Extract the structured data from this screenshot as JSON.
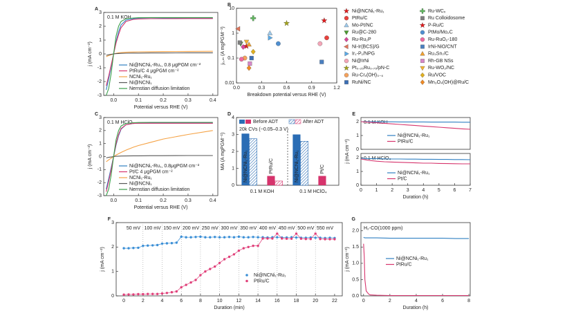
{
  "chart_data": [
    {
      "type": "line",
      "panel": "A",
      "annotations": [
        "0.1 M KOH"
      ],
      "xlabel": "Potential versus RHE (V)",
      "ylabel": "j (mA cm⁻²)",
      "xlim": [
        -0.04,
        0.42
      ],
      "xticks": [
        {
          "value": 0,
          "label": "0.0"
        },
        {
          "value": 0.1,
          "label": "0.1"
        },
        {
          "value": 0.2,
          "label": "0.2"
        },
        {
          "value": 0.3,
          "label": "0.3"
        },
        {
          "value": 0.4,
          "label": "0.4"
        }
      ],
      "ylim": [
        -3,
        3
      ],
      "yticks": [
        -3,
        -2,
        -1,
        0,
        1,
        2,
        3
      ],
      "x": [
        -0.03,
        -0.02,
        -0.01,
        0,
        0.01,
        0.02,
        0.03,
        0.05,
        0.08,
        0.1,
        0.15,
        0.2,
        0.3,
        0.4
      ],
      "series": [
        {
          "name": "Ni@NCNi₁-Ru₁, 0.8 μgPGM cm⁻²",
          "color": "#2f7fc2",
          "values": [
            -2.6,
            -1.8,
            -0.9,
            0,
            0.9,
            1.6,
            2.1,
            2.45,
            2.55,
            2.56,
            2.56,
            2.57,
            2.57,
            2.57
          ]
        },
        {
          "name": "PtRu/C 4 μgPGM cm⁻²",
          "color": "#d6336c",
          "values": [
            -2.3,
            -1.6,
            -0.8,
            0,
            0.8,
            1.4,
            1.9,
            2.35,
            2.5,
            2.53,
            2.55,
            2.55,
            2.56,
            2.56
          ]
        },
        {
          "name": "NCNi₁-Ru₁",
          "color": "#f5a142",
          "values": [
            -0.2,
            -0.12,
            -0.06,
            0,
            0.04,
            0.08,
            0.1,
            0.12,
            0.14,
            0.15,
            0.16,
            0.17,
            0.18,
            0.19
          ]
        },
        {
          "name": "Ni@NCNi₁",
          "color": "#555555",
          "values": [
            -0.1,
            -0.06,
            -0.03,
            0,
            0.02,
            0.03,
            0.04,
            0.05,
            0.06,
            0.06,
            0.07,
            0.07,
            0.08,
            0.08
          ]
        },
        {
          "name": "Nernstian diffusion limitation",
          "color": "#3a9e4a",
          "values": [
            -3,
            -2.5,
            -1.4,
            0,
            1.3,
            2.0,
            2.35,
            2.55,
            2.6,
            2.62,
            2.63,
            2.63,
            2.63,
            2.63
          ]
        }
      ]
    },
    {
      "type": "scatter",
      "panel": "B",
      "xlabel": "Breakdown potential versus RHE (V)",
      "ylabel": "j₀,ₘ (A mgPGM⁻¹)",
      "ylog": true,
      "xlim": [
        0,
        1.2
      ],
      "xticks": [
        {
          "value": 0,
          "label": "0.0"
        },
        0.3,
        0.6,
        0.9,
        1.2
      ],
      "ylim": [
        0.01,
        10
      ],
      "yticks": [
        0.01,
        0.1,
        1,
        10
      ],
      "series": [
        {
          "name": "Ni@NCNi₁-Ru₁",
          "color": "#e31a1c",
          "marker": "star",
          "x": [
            1.05
          ],
          "values": [
            3.2
          ]
        },
        {
          "name": "PtRu/C",
          "color": "#e8413c",
          "marker": "circle",
          "x": [
            1.08
          ],
          "values": [
            0.65
          ]
        },
        {
          "name": "Mo-Pt/NC",
          "color": "#9ec9ea",
          "marker": "tri-up",
          "x": [
            0.4
          ],
          "values": [
            1.0
          ]
        },
        {
          "name": "Ru@C-280",
          "color": "#4a9a2e",
          "marker": "tri-down",
          "x": [
            0.05
          ],
          "values": [
            0.38
          ]
        },
        {
          "name": "Ru-Ru₂P",
          "color": "#d9479a",
          "marker": "diamond",
          "x": [
            0.08
          ],
          "values": [
            0.28
          ]
        },
        {
          "name": "Ni-Ir(BCS)/G",
          "color": "#e0745a",
          "marker": "tri-left",
          "x": [
            0.02
          ],
          "values": [
            1.5
          ]
        },
        {
          "name": "Ir₁-P₁/NPG",
          "color": "#5aa9e6",
          "marker": "tri-right",
          "x": [
            0.4
          ],
          "values": [
            0.65
          ]
        },
        {
          "name": "Ni@IrNi",
          "color": "#f4a6b8",
          "marker": "circle",
          "x": [
            1.0
          ],
          "values": [
            0.38
          ]
        },
        {
          "name": "Pt₀.₂₅Ru₀.₇₅/pN-C",
          "color": "#a3a31a",
          "marker": "star",
          "x": [
            0.6
          ],
          "values": [
            2.5
          ]
        },
        {
          "name": "Ru-Crₓ(OH)₃₋ₓ",
          "color": "#f5a25d",
          "marker": "circle",
          "x": [
            0.1
          ],
          "values": [
            0.1
          ]
        },
        {
          "name": "RuNi/NC",
          "color": "#3b6fb6",
          "marker": "square",
          "x": [
            0.18
          ],
          "values": [
            0.1
          ]
        },
        {
          "name": "Ru-WCₓ",
          "color": "#5db85c",
          "marker": "plus",
          "x": [
            0.2
          ],
          "values": [
            4
          ]
        },
        {
          "name": "Ru Colloidosome",
          "color": "#7f7f7f",
          "marker": "square",
          "x": [
            0.04
          ],
          "values": [
            0.42
          ]
        },
        {
          "name": "P-Ru/C",
          "color": "#e31a1c",
          "marker": "star",
          "x": [
            0.12
          ],
          "values": [
            0.3
          ]
        },
        {
          "name": "PtMo/Mo₂C",
          "color": "#4f8fd1",
          "marker": "circle",
          "x": [
            0.5
          ],
          "values": [
            0.38
          ]
        },
        {
          "name": "Ru-RuO₂-180",
          "color": "#ef6aa0",
          "marker": "circle",
          "x": [
            0.06
          ],
          "values": [
            0.09
          ]
        },
        {
          "name": "IrNi-NiO/CNT",
          "color": "#4a7fc0",
          "marker": "square",
          "x": [
            1.02
          ],
          "values": [
            0.07
          ]
        },
        {
          "name": "Ru₃Sn₇/C",
          "color": "#f0a030",
          "marker": "tri-up",
          "x": [
            0.15
          ],
          "values": [
            0.35
          ]
        },
        {
          "name": "Rh-GB NSs",
          "color": "#d788c8",
          "marker": "square",
          "x": [
            0.16
          ],
          "values": [
            0.06
          ]
        },
        {
          "name": "Ru-WO₂/NC",
          "color": "#f2b234",
          "marker": "tri-down",
          "x": [
            0.12
          ],
          "values": [
            0.45
          ]
        },
        {
          "name": "Ru/VOC",
          "color": "#e0b020",
          "marker": "diamond",
          "x": [
            0.2
          ],
          "values": [
            0.18
          ]
        },
        {
          "name": "Mn₃O₄(OH)@Ru/C",
          "color": "#f08a24",
          "marker": "diamond",
          "x": [
            0.15
          ],
          "values": [
            0.04
          ]
        }
      ]
    },
    {
      "type": "line",
      "panel": "C",
      "annotations": [
        "0.1 M HClO₄"
      ],
      "xlabel": "Potential versus RHE (V)",
      "ylabel": "j (mA cm⁻²)",
      "xlim": [
        -0.04,
        0.42
      ],
      "xticks": [
        {
          "value": 0,
          "label": "0.0"
        },
        {
          "value": 0.1,
          "label": "0.1"
        },
        {
          "value": 0.2,
          "label": "0.2"
        },
        {
          "value": 0.3,
          "label": "0.3"
        },
        {
          "value": 0.4,
          "label": "0.4"
        }
      ],
      "ylim": [
        -3,
        3
      ],
      "yticks": [
        -3,
        -2,
        -1,
        0,
        1,
        2,
        3
      ],
      "x": [
        -0.03,
        -0.02,
        -0.01,
        0,
        0.01,
        0.02,
        0.03,
        0.05,
        0.08,
        0.1,
        0.15,
        0.2,
        0.3,
        0.4
      ],
      "series": [
        {
          "name": "Ni@NCNi₁-Ru₁, 0.8μgPGM cm⁻²",
          "color": "#2f7fc2",
          "values": [
            -2.5,
            -1.7,
            -0.85,
            0,
            0.9,
            1.6,
            2.1,
            2.45,
            2.55,
            2.56,
            2.57,
            2.57,
            2.57,
            2.57
          ]
        },
        {
          "name": "Pt/C 4 μgPGM cm⁻²",
          "color": "#d6336c",
          "values": [
            -2.7,
            -1.9,
            -1.0,
            0,
            1.0,
            1.7,
            2.15,
            2.45,
            2.55,
            2.56,
            2.56,
            2.56,
            2.56,
            2.56
          ]
        },
        {
          "name": "NCNi₁-Ru₁",
          "color": "#f5a142",
          "values": [
            -0.4,
            -0.25,
            -0.12,
            0,
            0.12,
            0.22,
            0.32,
            0.5,
            0.72,
            0.85,
            1.1,
            1.35,
            1.7,
            2.0
          ]
        },
        {
          "name": "Ni@NCNi₁",
          "color": "#555555",
          "values": [
            -0.1,
            -0.06,
            -0.03,
            0,
            0.02,
            0.03,
            0.04,
            0.05,
            0.06,
            0.06,
            0.07,
            0.07,
            0.08,
            0.08
          ]
        },
        {
          "name": "Nernstian diffusion limitation",
          "color": "#3a9e4a",
          "values": [
            -3,
            -2.5,
            -1.4,
            0,
            1.3,
            2.0,
            2.35,
            2.55,
            2.6,
            2.62,
            2.63,
            2.63,
            2.63,
            2.63
          ]
        }
      ]
    },
    {
      "type": "bar",
      "panel": "D",
      "annotations": [
        "20k CVs (−0.05–0.3 V)"
      ],
      "ylabel": "MA (A mgPGM⁻¹)",
      "ylim": [
        0,
        4
      ],
      "yticks": [
        0,
        1,
        2,
        3,
        4
      ],
      "categories": [
        "Ni@NCNi₁-Ru₁",
        "PtRu/C",
        "Ni@NCNi₁-Ru₁",
        "Pt/C"
      ],
      "groups": [
        "0.1 M KOH",
        "0.1 M HClO₄"
      ],
      "colors": [
        "#2a6db5",
        "#d6336c",
        "#2a6db5",
        "#d6336c"
      ],
      "series": [
        {
          "name": "Before ADT",
          "hatched": false,
          "values": [
            3.05,
            0.55,
            3.0,
            0.55
          ]
        },
        {
          "name": "After ADT",
          "hatched": true,
          "values": [
            2.75,
            0.25,
            2.6,
            null
          ]
        }
      ]
    },
    {
      "type": "line",
      "panel": "E",
      "annotations": [
        "0.1 M KOH"
      ],
      "ylabel": "j (mA cm⁻²)",
      "xlim": [
        0,
        7
      ],
      "ylim": [
        0,
        2.3
      ],
      "yticks": [
        0,
        1,
        2
      ],
      "x": [
        0,
        0.5,
        1,
        1.5,
        2,
        2.5,
        3,
        3.5,
        4,
        4.5,
        5,
        5.5,
        6,
        6.5,
        7
      ],
      "series": [
        {
          "name": "Ni@NCNi₁-Ru₁",
          "color": "#2f7fc2",
          "values": [
            2.0,
            2.0,
            1.99,
            1.99,
            1.99,
            1.98,
            1.98,
            1.98,
            1.98,
            1.97,
            1.97,
            1.97,
            1.97,
            1.96,
            1.96
          ]
        },
        {
          "name": "PtRu/C",
          "color": "#d6336c",
          "values": [
            2.0,
            1.96,
            1.92,
            1.88,
            1.84,
            1.8,
            1.76,
            1.72,
            1.68,
            1.64,
            1.6,
            1.56,
            1.52,
            1.48,
            1.45
          ]
        }
      ]
    },
    {
      "type": "line",
      "annotations": [
        "0.1 M HClO₄"
      ],
      "xlabel": "Duration (h)",
      "xlim": [
        0,
        7
      ],
      "xticks": [
        0,
        1,
        2,
        3,
        4,
        5,
        6,
        7
      ],
      "ylim": [
        0,
        2.3
      ],
      "yticks": [
        0,
        1,
        2
      ],
      "x": [
        0,
        0.5,
        1,
        1.5,
        2,
        2.5,
        3,
        3.5,
        4,
        4.5,
        5,
        5.5,
        6,
        6.5,
        7
      ],
      "series": [
        {
          "name": "Ni@NCNi₁-Ru₁",
          "color": "#2f7fc2",
          "values": [
            1.95,
            1.93,
            1.92,
            1.91,
            1.9,
            1.9,
            1.89,
            1.89,
            1.88,
            1.88,
            1.87,
            1.87,
            1.86,
            1.86,
            1.85
          ]
        },
        {
          "name": "Pt/C",
          "color": "#d6336c",
          "values": [
            1.9,
            1.8,
            1.74,
            1.7,
            1.68,
            1.66,
            1.64,
            1.62,
            1.6,
            1.6,
            1.58,
            1.57,
            1.56,
            1.55,
            1.55
          ]
        }
      ]
    },
    {
      "type": "line",
      "panel": "F",
      "markers": true,
      "xgrid": true,
      "annotations": [
        "50 mV",
        "100 mV",
        "150 mV",
        "200 mV",
        "250 mV",
        "300 mV",
        "350 mV",
        "400 mV",
        "450 mV",
        "500 mV",
        "550 mV"
      ],
      "xlabel": "Duration (min)",
      "ylabel": "j (mA cm⁻²)",
      "xlim": [
        -0.8,
        22.8
      ],
      "xticks": [
        0,
        2,
        4,
        6,
        8,
        10,
        12,
        14,
        16,
        18,
        20,
        22
      ],
      "ylim": [
        0,
        3
      ],
      "yticks": [
        0,
        1,
        2,
        3
      ],
      "x": [
        0,
        0.5,
        1,
        1.5,
        2,
        2.5,
        3,
        3.5,
        4,
        4.5,
        5,
        5.5,
        6,
        6.5,
        7,
        7.5,
        8,
        8.5,
        9,
        9.5,
        10,
        10.5,
        11,
        11.5,
        12,
        12.5,
        13,
        13.5,
        14,
        14.5,
        15,
        15.5,
        16,
        16.5,
        17,
        17.5,
        18,
        18.5,
        19,
        19.5,
        20,
        20.5,
        21,
        21.5,
        22
      ],
      "series": [
        {
          "name": "Ni@NCNi₁-Ru₁",
          "color": "#3b8fd6",
          "values": [
            1.95,
            1.95,
            1.96,
            1.97,
            2.05,
            2.06,
            2.07,
            2.08,
            2.14,
            2.15,
            2.16,
            2.18,
            2.42,
            2.4,
            2.4,
            2.41,
            2.42,
            2.4,
            2.4,
            2.41,
            2.4,
            2.4,
            2.41,
            2.4,
            2.42,
            2.4,
            2.4,
            2.41,
            2.4,
            2.4,
            2.39,
            2.4,
            2.4,
            2.39,
            2.39,
            2.4,
            2.39,
            2.38,
            2.38,
            2.39,
            2.38,
            2.38,
            2.37,
            2.38,
            2.37
          ]
        },
        {
          "name": "PtRu/C",
          "color": "#e0407a",
          "values": [
            0.05,
            0.06,
            0.06,
            0.07,
            0.07,
            0.08,
            0.08,
            0.08,
            0.1,
            0.12,
            0.15,
            0.18,
            0.35,
            0.45,
            0.55,
            0.65,
            0.85,
            1.0,
            1.1,
            1.2,
            1.35,
            1.5,
            1.6,
            1.7,
            1.85,
            1.95,
            2.0,
            2.05,
            2.05,
            2.35,
            2.35,
            2.35,
            2.55,
            2.35,
            2.34,
            2.34,
            2.55,
            2.34,
            2.33,
            2.33,
            2.55,
            2.33,
            2.32,
            2.32,
            2.32
          ]
        }
      ]
    },
    {
      "type": "line",
      "panel": "G",
      "annotations": [
        "H₂-CO(1000 ppm)"
      ],
      "xlabel": "Duration (h)",
      "ylabel": "j (mA cm⁻²)",
      "xlim": [
        -0.2,
        8.1
      ],
      "xticks": [
        0,
        2,
        4,
        6,
        8
      ],
      "ylim": [
        0,
        2.25
      ],
      "yticks": [
        {
          "value": 0,
          "label": "0.0"
        },
        0.5,
        {
          "value": 1,
          "label": "1.0"
        },
        1.5,
        {
          "value": 2,
          "label": "2.0"
        }
      ],
      "x": [
        0,
        0.05,
        0.1,
        0.2,
        0.3,
        0.4,
        0.5,
        1,
        2,
        3,
        4,
        5,
        6,
        7,
        8
      ],
      "series": [
        {
          "name": "Ni@NCNi₁-Ru₁",
          "color": "#2f7fc2",
          "values": [
            1.8,
            1.79,
            1.78,
            1.78,
            1.78,
            1.78,
            1.78,
            1.78,
            1.77,
            1.77,
            1.77,
            1.77,
            1.77,
            1.76,
            1.76
          ]
        },
        {
          "name": "PtRu/C",
          "color": "#d6336c",
          "values": [
            1.6,
            1.2,
            0.5,
            0.15,
            0.1,
            0.05,
            0.03,
            0.02,
            0.01,
            0.01,
            0.01,
            0.01,
            0.01,
            0.01,
            0.01
          ]
        }
      ]
    }
  ]
}
